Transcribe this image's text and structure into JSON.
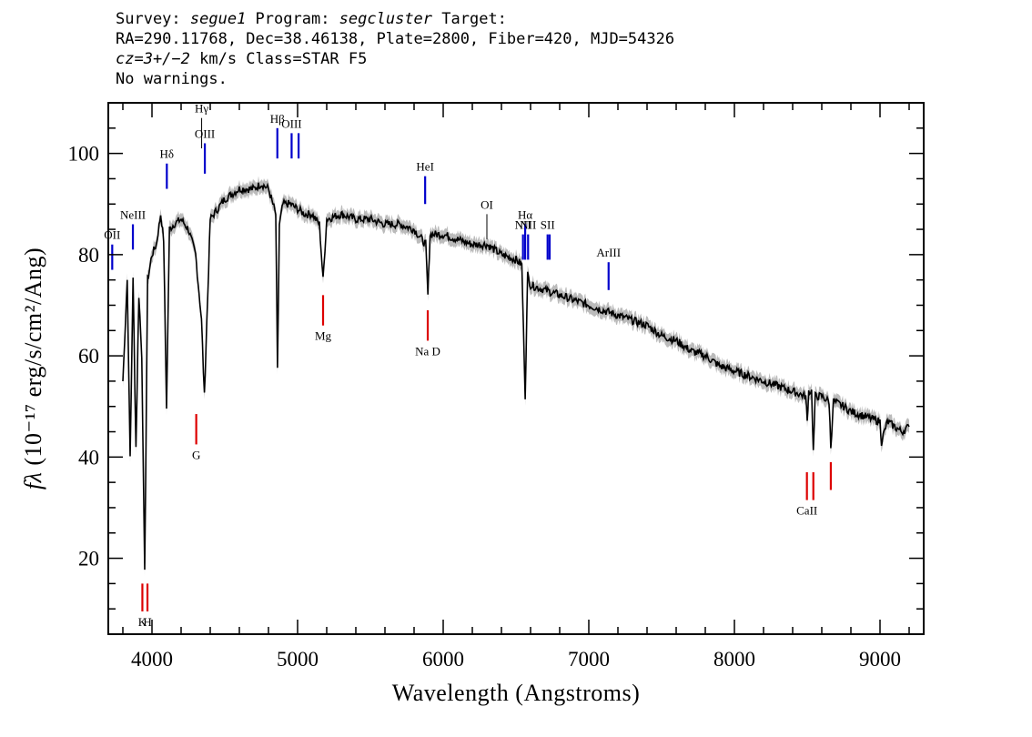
{
  "header": {
    "line1": {
      "survey_label": "Survey: ",
      "survey": "segue1",
      "program_label": " Program: ",
      "program": "segcluster",
      "target_label": " Target:"
    },
    "line2": "RA=290.11768, Dec=38.46138, Plate=2800, Fiber=420, MJD=54326",
    "line3": {
      "cz": "cz=3+/−2",
      "rest": " km/s Class=STAR F5"
    },
    "line4": "No warnings."
  },
  "chart_data": {
    "type": "line",
    "xlabel": "Wavelength (Angstroms)",
    "ylabel": "fλ (10⁻¹⁷ erg/s/cm²/Ang)",
    "xlim": [
      3700,
      9300
    ],
    "ylim": [
      5,
      110
    ],
    "xticks": [
      4000,
      5000,
      6000,
      7000,
      8000,
      9000
    ],
    "yticks": [
      20,
      40,
      60,
      80,
      100
    ],
    "colors": {
      "spectrum": "#000000",
      "error": "#bbbbbb",
      "emission": "#0000cc",
      "absorption": "#dd0000",
      "weak": "#000000"
    },
    "series": [
      {
        "x": [
          3800,
          3830,
          3850,
          3870,
          3890,
          3910,
          3930,
          3950,
          3970,
          4000,
          4030,
          4060,
          4080,
          4100,
          4120,
          4150,
          4200,
          4250,
          4300,
          4340,
          4360,
          4400,
          4450,
          4500,
          4550,
          4600,
          4650,
          4700,
          4750,
          4800,
          4830,
          4850,
          4862,
          4875,
          4900,
          4950,
          5000,
          5050,
          5100,
          5150,
          5175,
          5200,
          5300,
          5400,
          5500,
          5600,
          5700,
          5800,
          5880,
          5895,
          5910,
          6000,
          6100,
          6200,
          6300,
          6400,
          6500,
          6540,
          6563,
          6580,
          6600,
          6700,
          6800,
          6900,
          7000,
          7100,
          7200,
          7300,
          7400,
          7500,
          7600,
          7700,
          7800,
          7900,
          8000,
          8100,
          8200,
          8300,
          8400,
          8490,
          8500,
          8510,
          8530,
          8542,
          8555,
          8600,
          8650,
          8662,
          8680,
          8750,
          8800,
          8900,
          9000,
          9010,
          9050,
          9100,
          9150,
          9200
        ],
        "y": [
          55,
          75,
          40,
          75,
          42,
          72,
          60,
          17,
          75,
          80,
          82,
          88,
          83,
          50,
          85,
          86,
          87,
          85,
          80,
          67,
          52,
          87,
          89,
          91,
          92,
          93,
          93,
          93,
          94,
          93,
          90,
          88,
          57,
          86,
          90,
          90,
          89,
          88,
          88,
          86,
          75,
          87,
          88,
          87,
          87,
          86,
          86,
          85,
          82,
          72,
          84,
          84,
          83,
          82,
          82,
          80,
          79,
          78,
          52,
          76,
          74,
          73,
          72,
          71,
          70,
          69,
          68,
          67,
          66,
          64,
          63,
          61,
          60,
          58,
          57,
          56,
          55,
          54,
          53,
          52,
          47,
          53,
          53,
          41,
          52,
          52,
          51,
          42,
          51,
          50,
          49,
          48,
          47,
          43,
          47,
          46,
          45,
          46
        ]
      }
    ],
    "lines": [
      {
        "label": "OII",
        "x": 3727,
        "y": [
          77,
          82
        ],
        "kind": "emission"
      },
      {
        "label": "NeIII",
        "x": 3869,
        "y": [
          81,
          86
        ],
        "kind": "emission"
      },
      {
        "label": "Hδ",
        "x": 4102,
        "y": [
          93,
          98
        ],
        "kind": "emission"
      },
      {
        "label": "Hγ",
        "x": 4341,
        "y": [
          101,
          107
        ],
        "kind": "weak"
      },
      {
        "label": "OIII",
        "x": 4363,
        "y": [
          96,
          102
        ],
        "kind": "emission"
      },
      {
        "label": "Hβ",
        "x": 4861,
        "y": [
          99,
          105
        ],
        "kind": "emission"
      },
      {
        "label": "OIII",
        "x": 4959,
        "y": [
          99,
          104
        ],
        "kind": "emission"
      },
      {
        "label": "",
        "x": 5007,
        "y": [
          99,
          104
        ],
        "kind": "emission"
      },
      {
        "label": "HeI",
        "x": 5876,
        "y": [
          90,
          95.5
        ],
        "kind": "emission"
      },
      {
        "label": "OI",
        "x": 6300,
        "y": [
          83,
          88
        ],
        "kind": "weak"
      },
      {
        "label": "NII",
        "x": 6548,
        "y": [
          79,
          84
        ],
        "kind": "emission"
      },
      {
        "label": "Hα",
        "x": 6563,
        "y": [
          79,
          86
        ],
        "kind": "emission"
      },
      {
        "label": "NII",
        "x": 6583,
        "y": [
          79,
          84
        ],
        "kind": "emission"
      },
      {
        "label": "SII",
        "x": 6717,
        "y": [
          79,
          84
        ],
        "kind": "emission"
      },
      {
        "label": "",
        "x": 6731,
        "y": [
          79,
          84
        ],
        "kind": "emission"
      },
      {
        "label": "ArIII",
        "x": 7136,
        "y": [
          73,
          78.5
        ],
        "kind": "emission"
      },
      {
        "label": "K",
        "x": 3934,
        "y": [
          9.5,
          15
        ],
        "kind": "absorption"
      },
      {
        "label": "H",
        "x": 3969,
        "y": [
          9.5,
          15
        ],
        "kind": "absorption"
      },
      {
        "label": "G",
        "x": 4304,
        "y": [
          42.5,
          48.5
        ],
        "kind": "absorption"
      },
      {
        "label": "Mg",
        "x": 5175,
        "y": [
          66,
          72
        ],
        "kind": "absorption"
      },
      {
        "label": "Na D",
        "x": 5894,
        "y": [
          63,
          69
        ],
        "kind": "absorption"
      },
      {
        "label": "CaII",
        "x": 8498,
        "y": [
          31.5,
          37
        ],
        "kind": "absorption"
      },
      {
        "label": "",
        "x": 8542,
        "y": [
          31.5,
          37
        ],
        "kind": "absorption"
      },
      {
        "label": "",
        "x": 8662,
        "y": [
          33.5,
          39
        ],
        "kind": "absorption"
      }
    ]
  }
}
